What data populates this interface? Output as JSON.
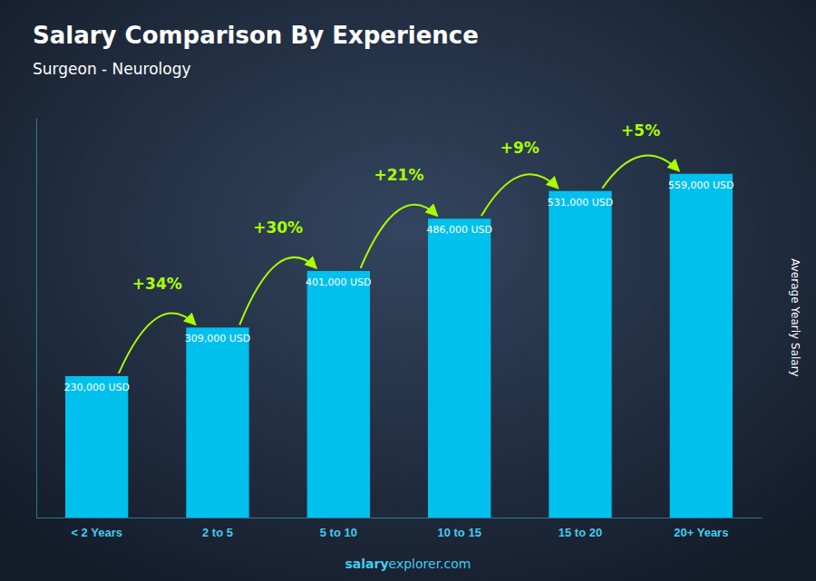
{
  "chart_data": {
    "type": "bar",
    "title": "Salary Comparison By Experience",
    "subtitle": "Surgeon - Neurology",
    "categories": [
      "< 2 Years",
      "2 to 5",
      "5 to 10",
      "10 to 15",
      "15 to 20",
      "20+ Years"
    ],
    "values": [
      230000,
      309000,
      401000,
      486000,
      531000,
      559000
    ],
    "value_labels": [
      "230,000 USD",
      "309,000 USD",
      "401,000 USD",
      "486,000 USD",
      "531,000 USD",
      "559,000 USD"
    ],
    "data_labels": true,
    "color": "#00C0EE",
    "ylim": [
      0,
      650000
    ],
    "ylabel": "Average Yearly Salary",
    "tick_labels": "x",
    "grid": false,
    "annotations": {
      "texts": [
        "+34%",
        "+30%",
        "+21%",
        "+9%",
        "+5%"
      ],
      "color": "#aaff00"
    },
    "watermark": [
      "salary",
      "explorer.com"
    ]
  }
}
